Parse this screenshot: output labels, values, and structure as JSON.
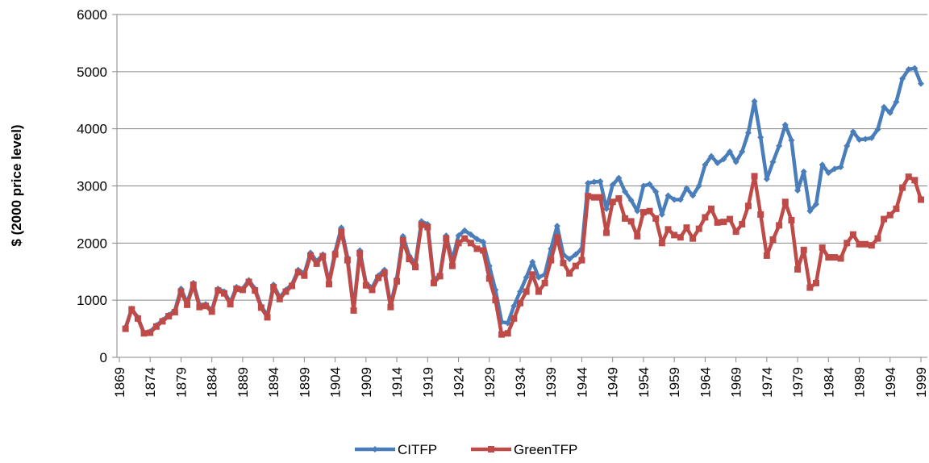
{
  "chart_data": {
    "type": "line",
    "y_label": "$ (2000 price level)",
    "x": [
      1870,
      1871,
      1872,
      1873,
      1874,
      1875,
      1876,
      1877,
      1878,
      1879,
      1880,
      1881,
      1882,
      1883,
      1884,
      1885,
      1886,
      1887,
      1888,
      1889,
      1890,
      1891,
      1892,
      1893,
      1894,
      1895,
      1896,
      1897,
      1898,
      1899,
      1900,
      1901,
      1902,
      1903,
      1904,
      1905,
      1906,
      1907,
      1908,
      1909,
      1910,
      1911,
      1912,
      1913,
      1914,
      1915,
      1916,
      1917,
      1918,
      1919,
      1920,
      1921,
      1922,
      1923,
      1924,
      1925,
      1926,
      1927,
      1928,
      1929,
      1930,
      1931,
      1932,
      1933,
      1934,
      1935,
      1936,
      1937,
      1938,
      1939,
      1940,
      1941,
      1942,
      1943,
      1944,
      1945,
      1946,
      1947,
      1948,
      1949,
      1950,
      1951,
      1952,
      1953,
      1954,
      1955,
      1956,
      1957,
      1958,
      1959,
      1960,
      1961,
      1962,
      1963,
      1964,
      1965,
      1966,
      1967,
      1968,
      1969,
      1970,
      1971,
      1972,
      1973,
      1974,
      1975,
      1976,
      1977,
      1978,
      1979,
      1980,
      1981,
      1982,
      1983,
      1984,
      1985,
      1986,
      1987,
      1988,
      1989,
      1990,
      1991,
      1992,
      1993,
      1994,
      1995,
      1996,
      1997,
      1998,
      1999
    ],
    "series": [
      {
        "name": "CITFP",
        "color": "#4a7ebb",
        "marker": "diamond",
        "values": [
          520,
          850,
          700,
          430,
          450,
          560,
          650,
          740,
          820,
          1200,
          950,
          1300,
          920,
          930,
          820,
          1200,
          1150,
          960,
          1230,
          1200,
          1350,
          1200,
          900,
          730,
          1270,
          1050,
          1180,
          1280,
          1530,
          1470,
          1830,
          1680,
          1800,
          1320,
          1850,
          2270,
          1750,
          850,
          1870,
          1300,
          1220,
          1430,
          1530,
          920,
          1380,
          2120,
          1780,
          1640,
          2380,
          2330,
          1350,
          1450,
          2130,
          1700,
          2130,
          2220,
          2150,
          2070,
          2020,
          1600,
          1180,
          620,
          600,
          900,
          1150,
          1400,
          1670,
          1400,
          1450,
          1900,
          2300,
          1800,
          1720,
          1800,
          1900,
          3050,
          3070,
          3080,
          2600,
          3020,
          3140,
          2900,
          2750,
          2560,
          3000,
          3030,
          2900,
          2500,
          2830,
          2760,
          2760,
          2960,
          2830,
          3000,
          3370,
          3520,
          3400,
          3470,
          3600,
          3420,
          3600,
          3930,
          4480,
          3850,
          3120,
          3420,
          3700,
          4070,
          3800,
          2920,
          3250,
          2560,
          2680,
          3370,
          3230,
          3300,
          3330,
          3700,
          3950,
          3810,
          3820,
          3840,
          3990,
          4380,
          4280,
          4470,
          4880,
          5040,
          5060,
          4790
        ]
      },
      {
        "name": "GreenTFP",
        "color": "#be4b48",
        "marker": "square",
        "values": [
          500,
          840,
          680,
          420,
          430,
          540,
          630,
          720,
          790,
          1150,
          920,
          1270,
          880,
          900,
          800,
          1170,
          1120,
          930,
          1200,
          1180,
          1320,
          1170,
          870,
          700,
          1230,
          1020,
          1150,
          1250,
          1490,
          1430,
          1780,
          1640,
          1770,
          1280,
          1800,
          2200,
          1700,
          820,
          1820,
          1260,
          1180,
          1390,
          1480,
          880,
          1330,
          2050,
          1720,
          1580,
          2320,
          2280,
          1300,
          1420,
          2080,
          1600,
          2000,
          2080,
          2000,
          1900,
          1870,
          1380,
          1000,
          400,
          420,
          680,
          950,
          1150,
          1450,
          1150,
          1300,
          1700,
          2100,
          1650,
          1470,
          1600,
          1700,
          2820,
          2800,
          2800,
          2180,
          2720,
          2780,
          2430,
          2380,
          2120,
          2540,
          2560,
          2430,
          2000,
          2240,
          2140,
          2100,
          2270,
          2080,
          2250,
          2450,
          2600,
          2360,
          2370,
          2420,
          2200,
          2330,
          2650,
          3170,
          2500,
          1780,
          2060,
          2310,
          2720,
          2400,
          1540,
          1880,
          1220,
          1300,
          1920,
          1750,
          1750,
          1730,
          2000,
          2150,
          1980,
          1980,
          1960,
          2080,
          2420,
          2490,
          2600,
          2970,
          3160,
          3100,
          2760
        ]
      }
    ],
    "xlim": [
      1869,
      1999
    ],
    "xticks": [
      1869,
      1874,
      1879,
      1884,
      1889,
      1894,
      1899,
      1904,
      1909,
      1914,
      1919,
      1924,
      1929,
      1934,
      1939,
      1944,
      1949,
      1954,
      1959,
      1964,
      1969,
      1974,
      1979,
      1984,
      1989,
      1994,
      1999
    ],
    "ylim": [
      0,
      6000
    ],
    "yticks": [
      0,
      1000,
      2000,
      3000,
      4000,
      5000,
      6000
    ],
    "grid": true,
    "legend": "bottom"
  }
}
